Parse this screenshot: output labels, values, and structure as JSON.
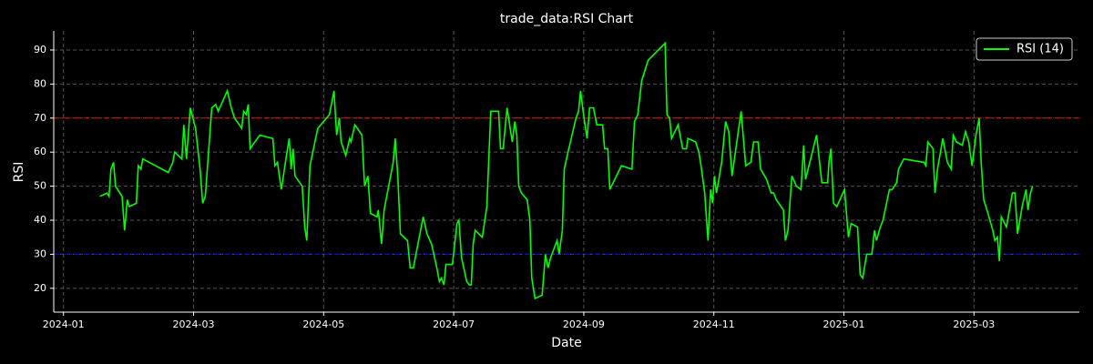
{
  "chart_data": {
    "type": "line",
    "title": "trade_data:RSI Chart",
    "xlabel": "Date",
    "ylabel": "RSI",
    "xlim": [
      -0.15,
      15.62
    ],
    "xticks": [
      {
        "value": 0,
        "label": "2024-01"
      },
      {
        "value": 2,
        "label": "2024-03"
      },
      {
        "value": 4,
        "label": "2024-05"
      },
      {
        "value": 6,
        "label": "2024-07"
      },
      {
        "value": 8,
        "label": "2024-09"
      },
      {
        "value": 10,
        "label": "2024-11"
      },
      {
        "value": 12,
        "label": "2025-01"
      },
      {
        "value": 14,
        "label": "2025-03"
      }
    ],
    "ylim": [
      13,
      95.6
    ],
    "yticks": [
      20,
      30,
      40,
      50,
      60,
      70,
      80,
      90
    ],
    "grid": true,
    "legend": "upper right",
    "hlines": [
      {
        "value": 70,
        "color": "#ff0000"
      },
      {
        "value": 30,
        "color": "#0000ff"
      }
    ],
    "x": [
      0.56,
      0.67,
      0.7,
      0.73,
      0.77,
      0.8,
      0.9,
      0.94,
      0.98,
      1.01,
      1.12,
      1.15,
      1.19,
      1.22,
      1.61,
      1.68,
      1.71,
      1.82,
      1.85,
      1.89,
      1.95,
      2.03,
      2.1,
      2.14,
      2.18,
      2.28,
      2.34,
      2.38,
      2.52,
      2.58,
      2.63,
      2.74,
      2.77,
      2.81,
      2.84,
      2.87,
      2.98,
      3.02,
      3.22,
      3.25,
      3.29,
      3.35,
      3.42,
      3.47,
      3.5,
      3.53,
      3.56,
      3.67,
      3.71,
      3.74,
      3.79,
      3.91,
      4.09,
      4.16,
      4.2,
      4.24,
      4.27,
      4.34,
      4.4,
      4.42,
      4.48,
      4.59,
      4.63,
      4.68,
      4.72,
      4.82,
      4.84,
      4.89,
      4.93,
      5.07,
      5.1,
      5.14,
      5.18,
      5.29,
      5.33,
      5.38,
      5.53,
      5.59,
      5.66,
      5.74,
      5.78,
      5.81,
      5.85,
      5.88,
      5.98,
      6.05,
      6.08,
      6.12,
      6.2,
      6.24,
      6.27,
      6.3,
      6.33,
      6.44,
      6.51,
      6.57,
      6.69,
      6.72,
      6.76,
      6.82,
      6.9,
      6.94,
      6.97,
      7.0,
      7.04,
      7.13,
      7.17,
      7.2,
      7.25,
      7.36,
      7.41,
      7.45,
      7.49,
      7.59,
      7.62,
      7.67,
      7.7,
      7.77,
      7.88,
      7.92,
      7.95,
      7.99,
      8.05,
      8.09,
      8.15,
      8.2,
      8.29,
      8.32,
      8.37,
      8.4,
      8.58,
      8.74,
      8.78,
      8.83,
      8.89,
      8.99,
      9.25,
      9.28,
      9.32,
      9.35,
      9.45,
      9.52,
      9.58,
      9.6,
      9.72,
      9.77,
      9.81,
      9.86,
      9.91,
      9.95,
      9.98,
      10.01,
      10.04,
      10.12,
      10.18,
      10.23,
      10.28,
      10.42,
      10.49,
      10.57,
      10.61,
      10.68,
      10.72,
      10.81,
      10.88,
      10.92,
      10.96,
      11.07,
      11.1,
      11.14,
      11.2,
      11.27,
      11.34,
      11.38,
      11.41,
      11.58,
      11.66,
      11.75,
      11.77,
      11.8,
      11.84,
      11.89,
      12.01,
      12.07,
      12.11,
      12.21,
      12.25,
      12.29,
      12.35,
      12.43,
      12.47,
      12.5,
      12.56,
      12.6,
      12.7,
      12.74,
      12.81,
      12.84,
      12.92,
      13.23,
      13.26,
      13.29,
      13.37,
      13.4,
      13.44,
      13.52,
      13.59,
      13.65,
      13.68,
      13.73,
      13.82,
      13.87,
      13.92,
      13.97,
      14.03,
      14.08,
      14.11,
      14.15,
      14.2,
      14.29,
      14.32,
      14.36,
      14.39,
      14.42,
      14.5,
      14.59,
      14.63,
      14.67,
      14.74,
      14.8,
      14.83,
      14.87,
      14.9
    ],
    "series": [
      {
        "name": "RSI (14)",
        "color": "#00ff00",
        "values": [
          47,
          48,
          47,
          55,
          57,
          50,
          47,
          37,
          46,
          44,
          45,
          56,
          55,
          58,
          54,
          57,
          60,
          58,
          68,
          58,
          73,
          67,
          55,
          45,
          47,
          73,
          74,
          72,
          78,
          73,
          70,
          67,
          72,
          71,
          74,
          61,
          64,
          65,
          64,
          56,
          57,
          49,
          58,
          64,
          55,
          61,
          53,
          50,
          38,
          34,
          56,
          67,
          71,
          78,
          65,
          70,
          63,
          59,
          64,
          63,
          68,
          65,
          50,
          53,
          42,
          41,
          43,
          33,
          43,
          57,
          64,
          53,
          36,
          34,
          26,
          26,
          41,
          36,
          33,
          26,
          22,
          23,
          21,
          27,
          27,
          39,
          40,
          29,
          22,
          21,
          21,
          33,
          37,
          35,
          44,
          72,
          72,
          61,
          61,
          73,
          63,
          69,
          65,
          50,
          48,
          46,
          40,
          23,
          17,
          18,
          30,
          26,
          29,
          34,
          30,
          37,
          55,
          61,
          70,
          72,
          78,
          72,
          64,
          73,
          73,
          68,
          68,
          61,
          61,
          49,
          56,
          55,
          69,
          71,
          81,
          87,
          92,
          71,
          70,
          64,
          68,
          61,
          61,
          64,
          63,
          60,
          55,
          48,
          34,
          49,
          45,
          53,
          48,
          57,
          69,
          66,
          53,
          72,
          56,
          57,
          63,
          63,
          55,
          52,
          48,
          48,
          46,
          43,
          34,
          37,
          53,
          50,
          49,
          62,
          52,
          65,
          51,
          51,
          57,
          61,
          45,
          44,
          49,
          35,
          39,
          38,
          24,
          23,
          30,
          30,
          37,
          34,
          38,
          40,
          49,
          49,
          51,
          55,
          58,
          57,
          56,
          63,
          61,
          48,
          55,
          64,
          57,
          55,
          65,
          63,
          62,
          66,
          63,
          56,
          65,
          70,
          57,
          46,
          43,
          37,
          34,
          35,
          28,
          41,
          38,
          48,
          48,
          36,
          44,
          49,
          43,
          48,
          50
        ]
      }
    ]
  }
}
